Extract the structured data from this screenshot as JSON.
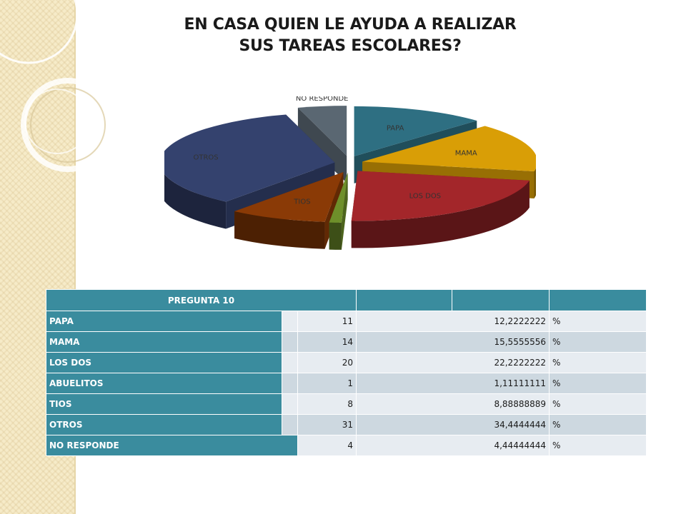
{
  "chart_data": {
    "type": "pie",
    "title": "EN CASA QUIEN LE AYUDA A REALIZAR SUS TAREAS ESCOLARES?",
    "title_lines": [
      "EN CASA QUIEN LE AYUDA A REALIZAR",
      "SUS TAREAS ESCOLARES?"
    ],
    "categories": [
      "PAPA",
      "MAMA",
      "LOS DOS",
      "ABUELITOS",
      "TIOS",
      "OTROS",
      "NO RESPONDE"
    ],
    "values": [
      11,
      14,
      20,
      1,
      8,
      31,
      4
    ],
    "colors": [
      "#2e6f82",
      "#d99e06",
      "#a3262a",
      "#6e8f2a",
      "#8a3a06",
      "#34426e",
      "#5a6772"
    ],
    "style": "3d-exploded"
  },
  "table": {
    "header": "PREGUNTA 10",
    "rows": [
      {
        "label": "PAPA",
        "count": "11",
        "percent": "12,2222222",
        "unit": "%"
      },
      {
        "label": "MAMA",
        "count": "14",
        "percent": "15,5555556",
        "unit": "%"
      },
      {
        "label": "LOS DOS",
        "count": "20",
        "percent": "22,2222222",
        "unit": "%"
      },
      {
        "label": "ABUELITOS",
        "count": "1",
        "percent": "1,11111111",
        "unit": "%"
      },
      {
        "label": "TIOS",
        "count": "8",
        "percent": "8,88888889",
        "unit": "%"
      },
      {
        "label": "OTROS",
        "count": "31",
        "percent": "34,4444444",
        "unit": "%"
      },
      {
        "label": "NO RESPONDE",
        "count": "4",
        "percent": "4,44444444",
        "unit": "%"
      }
    ]
  }
}
